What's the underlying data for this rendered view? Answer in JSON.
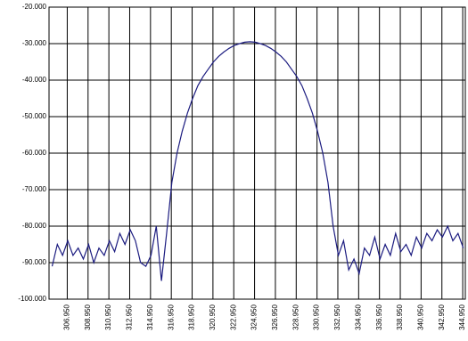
{
  "chart_data": {
    "type": "line",
    "x": [
      305.5,
      306,
      306.5,
      307,
      307.5,
      308,
      308.5,
      309,
      309.5,
      310,
      310.5,
      311,
      311.5,
      312,
      312.5,
      313,
      313.5,
      314,
      314.5,
      315,
      315.5,
      316,
      316.5,
      317,
      317.5,
      318,
      318.5,
      319,
      319.5,
      320,
      320.5,
      321,
      321.5,
      322,
      322.5,
      323,
      323.5,
      324,
      324.5,
      325,
      325.5,
      326,
      326.5,
      327,
      327.5,
      328,
      328.5,
      329,
      329.5,
      330,
      330.5,
      331,
      331.5,
      332,
      332.5,
      333,
      333.5,
      334,
      334.5,
      335,
      335.5,
      336,
      336.5,
      337,
      337.5,
      338,
      338.5,
      339,
      339.5,
      340,
      340.5,
      341,
      341.5,
      342,
      342.5,
      343,
      343.5,
      344,
      344.5,
      345
    ],
    "series": [
      {
        "color": "#1c1c80",
        "values": [
          -91,
          -85,
          -88,
          -84,
          -88,
          -86,
          -89,
          -85,
          -90,
          -86,
          -88,
          -84,
          -87,
          -82,
          -85,
          -81,
          -84,
          -90,
          -91,
          -88,
          -80,
          -95,
          -82,
          -68,
          -60,
          -54,
          -49,
          -45,
          -41.5,
          -39,
          -37,
          -35,
          -33.5,
          -32.3,
          -31.3,
          -30.5,
          -30,
          -29.6,
          -29.5,
          -29.6,
          -30,
          -30.5,
          -31.3,
          -32.3,
          -33.5,
          -35,
          -37,
          -39,
          -41.5,
          -45,
          -49,
          -54,
          -60,
          -68,
          -80,
          -88,
          -84,
          -92,
          -89,
          -93,
          -86,
          -88,
          -83,
          -89,
          -85,
          -88,
          -82,
          -87,
          -85,
          -88,
          -83,
          -86,
          -82,
          -84,
          -81,
          -83,
          -80,
          -84,
          -82,
          -86
        ]
      }
    ],
    "xlim": [
      305.2,
      345.2
    ],
    "xticks": [
      {
        "value": 306.95,
        "label": "306.950"
      },
      {
        "value": 308.95,
        "label": "308.950"
      },
      {
        "value": 310.95,
        "label": "310.950"
      },
      {
        "value": 312.95,
        "label": "312.950"
      },
      {
        "value": 314.95,
        "label": "314.950"
      },
      {
        "value": 316.95,
        "label": "316.950"
      },
      {
        "value": 318.95,
        "label": "318.950"
      },
      {
        "value": 320.95,
        "label": "320.950"
      },
      {
        "value": 322.95,
        "label": "322.950"
      },
      {
        "value": 324.95,
        "label": "324.950"
      },
      {
        "value": 326.95,
        "label": "326.950"
      },
      {
        "value": 328.95,
        "label": "328.950"
      },
      {
        "value": 330.95,
        "label": "330.950"
      },
      {
        "value": 332.95,
        "label": "332.950"
      },
      {
        "value": 334.95,
        "label": "334.950"
      },
      {
        "value": 336.95,
        "label": "336.950"
      },
      {
        "value": 338.95,
        "label": "338.950"
      },
      {
        "value": 340.95,
        "label": "340.950"
      },
      {
        "value": 342.95,
        "label": "342.950"
      },
      {
        "value": 344.95,
        "label": "344.950"
      }
    ],
    "ylim": [
      -100,
      -20
    ],
    "yticks": [
      {
        "value": -20,
        "label": "-20.000"
      },
      {
        "value": -30,
        "label": "-30.000"
      },
      {
        "value": -40,
        "label": "-40.000"
      },
      {
        "value": -50,
        "label": "-50.000"
      },
      {
        "value": -60,
        "label": "-60.000"
      },
      {
        "value": -70,
        "label": "-70.000"
      },
      {
        "value": -80,
        "label": "-80.000"
      },
      {
        "value": -90,
        "label": "-90.000"
      },
      {
        "value": -100,
        "label": "-100.000"
      }
    ],
    "grid": true
  }
}
